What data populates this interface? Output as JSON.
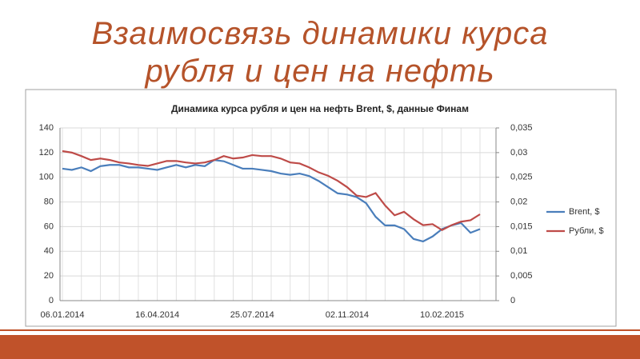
{
  "slide": {
    "title": [
      "Взаимосвязь динамики курса",
      "рубля и цен на нефть"
    ]
  },
  "chart_data": {
    "type": "line",
    "title": "Динамика курса рубля и цен на нефть Brent, $, данные Финам",
    "categories": [
      "06.01.2014",
      null,
      null,
      null,
      null,
      null,
      null,
      null,
      null,
      null,
      "16.04.2014",
      null,
      null,
      null,
      null,
      null,
      null,
      null,
      null,
      null,
      "25.07.2014",
      null,
      null,
      null,
      null,
      null,
      null,
      null,
      null,
      null,
      "02.11.2014",
      null,
      null,
      null,
      null,
      null,
      null,
      null,
      null,
      null,
      "10.02.2015",
      null,
      null,
      null,
      null
    ],
    "series": [
      {
        "name": "Brent, $",
        "color": "#4a7ebb",
        "values": [
          107,
          106,
          108,
          105,
          109,
          110,
          110,
          108,
          108,
          107,
          106,
          108,
          110,
          108,
          110,
          109,
          114,
          113,
          110,
          107,
          107,
          106,
          105,
          103,
          102,
          103,
          101,
          97,
          92,
          87,
          86,
          84,
          79,
          68,
          61,
          61,
          58,
          50,
          48,
          52,
          58,
          61,
          63,
          55,
          58
        ]
      },
      {
        "name": "Рубли, $",
        "color": "#be4b48",
        "axis": "y2",
        "values": [
          0.0303,
          0.03,
          0.0293,
          0.0285,
          0.0288,
          0.0285,
          0.028,
          0.0278,
          0.0275,
          0.0273,
          0.0278,
          0.0283,
          0.0283,
          0.028,
          0.0278,
          0.028,
          0.0285,
          0.0293,
          0.0288,
          0.029,
          0.0295,
          0.0293,
          0.0293,
          0.0288,
          0.028,
          0.0278,
          0.027,
          0.026,
          0.0253,
          0.0243,
          0.023,
          0.0213,
          0.021,
          0.0218,
          0.0193,
          0.0173,
          0.018,
          0.0165,
          0.0153,
          0.0155,
          0.0143,
          0.0153,
          0.016,
          0.0163,
          0.0175
        ]
      }
    ],
    "ylim": [
      0,
      140
    ],
    "yticks": [
      0,
      20,
      40,
      60,
      80,
      100,
      120,
      140
    ],
    "y2lim": [
      0,
      0.035
    ],
    "y2ticks": [
      0,
      {
        "value": 0.005,
        "label": "0,005"
      },
      {
        "value": 0.01,
        "label": "0,01"
      },
      {
        "value": 0.015,
        "label": "0,015"
      },
      {
        "value": 0.02,
        "label": "0,02"
      },
      {
        "value": 0.025,
        "label": "0,025"
      },
      {
        "value": 0.03,
        "label": "0,03"
      },
      {
        "value": 0.035,
        "label": "0,035"
      }
    ],
    "grid": true,
    "legend": "right"
  }
}
